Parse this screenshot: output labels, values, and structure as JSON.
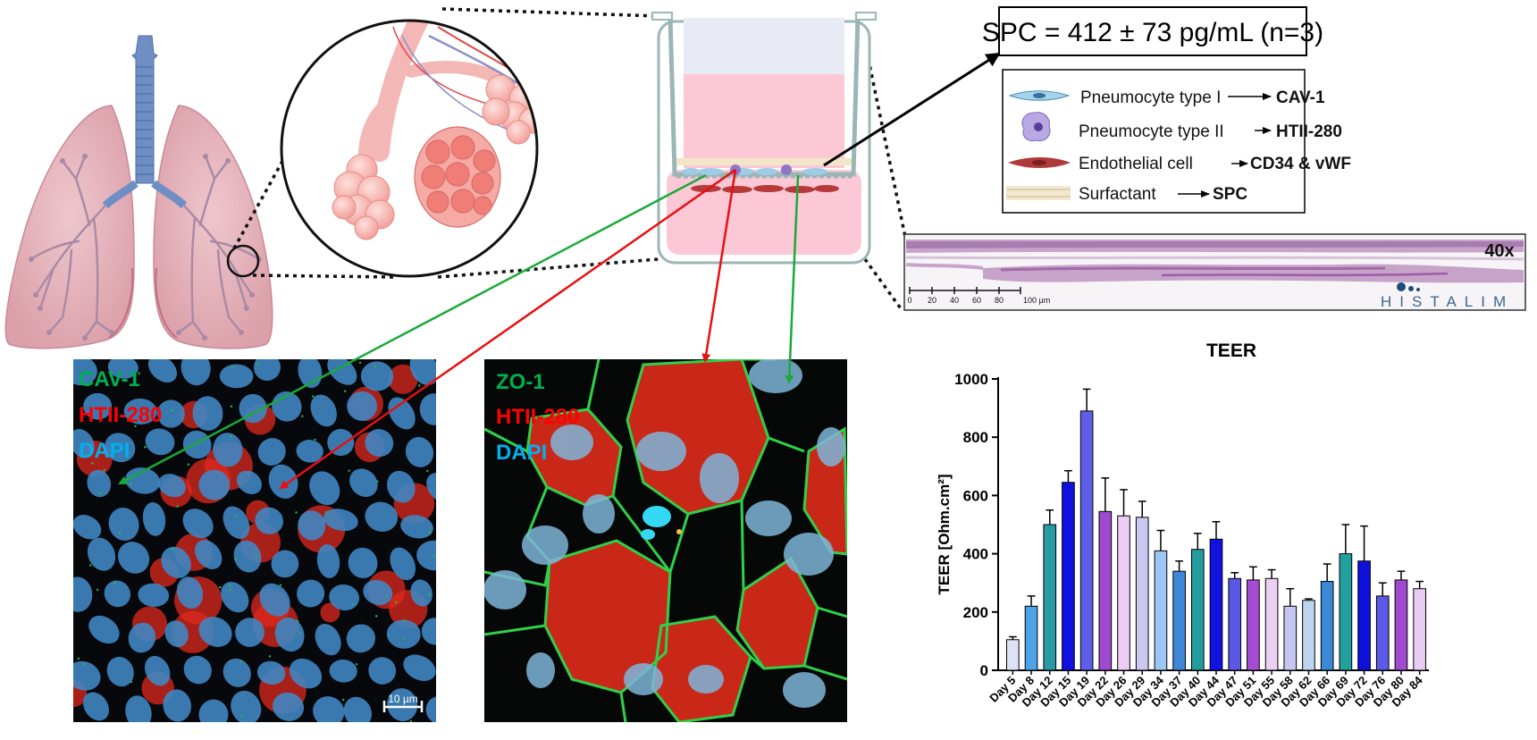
{
  "spc_box": {
    "text": "SPC = 412 ± 73 pg/mL (n=3)"
  },
  "legend": {
    "items": [
      {
        "icon": "pneumocyte-type-1-icon",
        "label": "Pneumocyte type I",
        "marker": "CAV-1"
      },
      {
        "icon": "pneumocyte-type-2-icon",
        "label": "Pneumocyte type II",
        "marker": "HTII-280"
      },
      {
        "icon": "endothelial-cell-icon",
        "label": "Endothelial cell",
        "marker": "CD34 & vWF"
      },
      {
        "icon": "surfactant-icon",
        "label": "Surfactant",
        "marker": "SPC"
      }
    ]
  },
  "histology": {
    "magnification": "40x",
    "scale_ticks": [
      "0",
      "20",
      "40",
      "60",
      "80",
      "100 µm"
    ],
    "logo_text": "HISTALIM"
  },
  "micrograph_left": {
    "labels": [
      {
        "text": "CAV-1",
        "color": "#00b050"
      },
      {
        "text": "HTII-280",
        "color": "#ff0000"
      },
      {
        "text": "DAPI",
        "color": "#00b0f0"
      }
    ],
    "scale_label": "10 µm"
  },
  "micrograph_right": {
    "labels": [
      {
        "text": "ZO-1",
        "color": "#00b050"
      },
      {
        "text": "HTII-280",
        "color": "#ff0000"
      },
      {
        "text": "DAPI",
        "color": "#00b0f0"
      }
    ]
  },
  "colors": {
    "green_arrow": "#1aaa3a",
    "red_arrow": "#e81010"
  },
  "chart_data": {
    "type": "bar",
    "title": "TEER",
    "ylabel": "TEER [Ohm.cm²]",
    "xlabel": "",
    "ylim": [
      0,
      1000
    ],
    "yticks": [
      0,
      200,
      400,
      600,
      800,
      1000
    ],
    "categories": [
      "Day 5",
      "Day 8",
      "Day 12",
      "Day 15",
      "Day 19",
      "Day 22",
      "Day 26",
      "Day 29",
      "Day 34",
      "Day 37",
      "Day 40",
      "Day 44",
      "Day 47",
      "Day 51",
      "Day 55",
      "Day 58",
      "Day 62",
      "Day 66",
      "Day 69",
      "Day 72",
      "Day 76",
      "Day 80",
      "Day 84"
    ],
    "values": [
      105,
      220,
      500,
      645,
      890,
      545,
      530,
      525,
      410,
      340,
      415,
      450,
      315,
      310,
      315,
      220,
      240,
      305,
      400,
      375,
      255,
      310,
      280
    ],
    "errors": [
      10,
      35,
      50,
      40,
      75,
      115,
      90,
      55,
      70,
      35,
      55,
      60,
      20,
      45,
      30,
      60,
      5,
      60,
      100,
      120,
      45,
      30,
      25
    ],
    "bar_colors": [
      "#dde2f6",
      "#4ea3e8",
      "#2a9aa4",
      "#1010e0",
      "#5e5ee8",
      "#9e4ad0",
      "#ecccf4",
      "#c9c9f2",
      "#9cc6f4",
      "#3e86d8",
      "#229c9c",
      "#1212e2",
      "#5858e4",
      "#a44cd2",
      "#ecd0f4",
      "#c6c6f2",
      "#bcd4ee",
      "#3a88d6",
      "#22a0a0",
      "#1010dc",
      "#5a5ae6",
      "#a04ad0",
      "#e8ccf2"
    ],
    "grid": false,
    "legend": "none"
  }
}
